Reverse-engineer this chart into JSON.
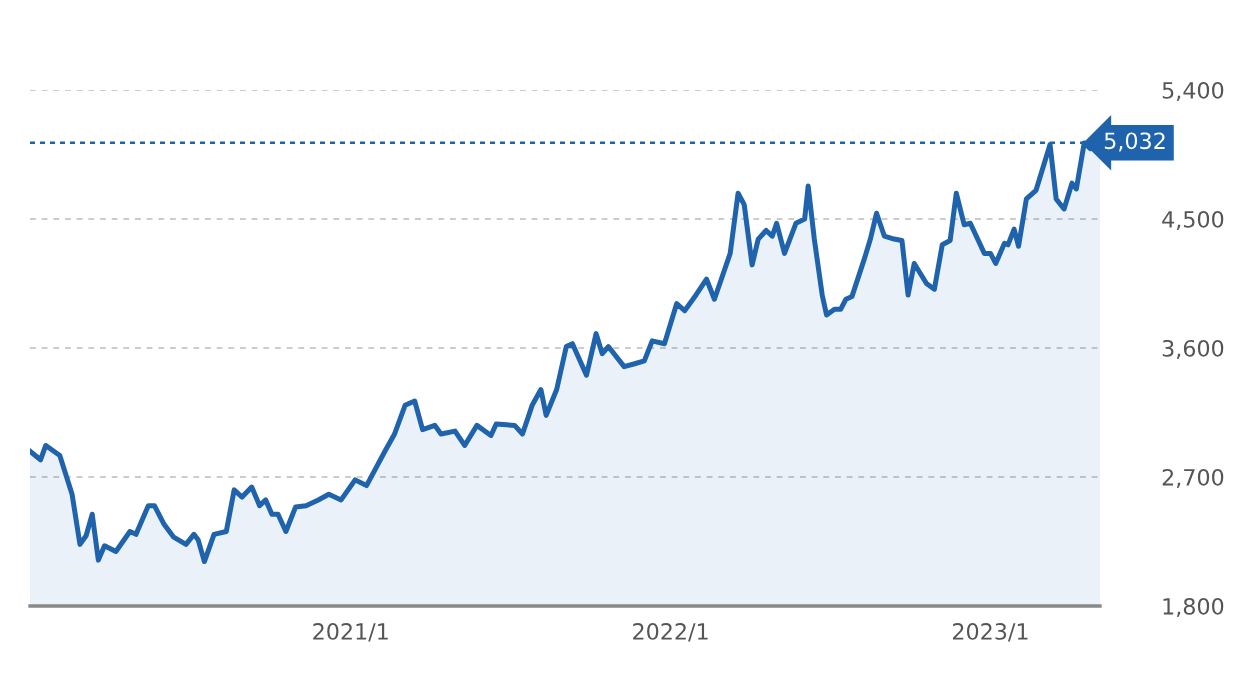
{
  "chart_data": {
    "type": "area",
    "x": [
      "2020-01-01",
      "2020-01-13",
      "2020-01-19",
      "2020-02-04",
      "2020-02-18",
      "2020-02-27",
      "2020-03-05",
      "2020-03-12",
      "2020-03-19",
      "2020-03-26",
      "2020-04-08",
      "2020-04-24",
      "2020-05-01",
      "2020-05-15",
      "2020-05-22",
      "2020-06-02",
      "2020-06-13",
      "2020-06-27",
      "2020-07-06",
      "2020-07-11",
      "2020-07-18",
      "2020-07-29",
      "2020-08-12",
      "2020-08-21",
      "2020-08-30",
      "2020-09-10",
      "2020-09-19",
      "2020-09-26",
      "2020-10-03",
      "2020-10-10",
      "2020-10-19",
      "2020-10-30",
      "2020-11-11",
      "2020-11-25",
      "2020-12-07",
      "2020-12-21",
      "2021-01-06",
      "2021-01-19",
      "2021-02-09",
      "2021-02-20",
      "2021-03-04",
      "2021-03-15",
      "2021-03-24",
      "2021-04-07",
      "2021-04-14",
      "2021-04-30",
      "2021-05-11",
      "2021-05-25",
      "2021-06-10",
      "2021-06-16",
      "2021-07-07",
      "2021-07-16",
      "2021-07-27",
      "2021-08-06",
      "2021-08-12",
      "2021-08-24",
      "2021-09-04",
      "2021-09-11",
      "2021-09-27",
      "2021-10-08",
      "2021-10-15",
      "2021-10-22",
      "2021-11-09",
      "2021-11-21",
      "2021-12-02",
      "2021-12-11",
      "2021-12-25",
      "2022-01-08",
      "2022-01-17",
      "2022-01-30",
      "2022-02-11",
      "2022-02-20",
      "2022-03-10",
      "2022-03-19",
      "2022-03-26",
      "2022-04-04",
      "2022-04-11",
      "2022-04-20",
      "2022-04-27",
      "2022-05-02",
      "2022-05-11",
      "2022-05-24",
      "2022-06-03",
      "2022-06-07",
      "2022-06-14",
      "2022-06-23",
      "2022-06-28",
      "2022-07-07",
      "2022-07-14",
      "2022-07-20",
      "2022-07-27",
      "2022-08-10",
      "2022-08-17",
      "2022-08-24",
      "2022-09-02",
      "2022-09-13",
      "2022-09-22",
      "2022-09-29",
      "2022-10-06",
      "2022-10-20",
      "2022-10-29",
      "2022-11-07",
      "2022-11-16",
      "2022-11-23",
      "2022-12-02",
      "2022-12-09",
      "2022-12-25",
      "2023-01-01",
      "2023-01-07",
      "2023-01-17",
      "2023-01-21",
      "2023-01-28",
      "2023-02-02",
      "2023-02-11",
      "2023-02-22",
      "2023-03-03",
      "2023-03-10",
      "2023-03-17",
      "2023-03-26",
      "2023-04-04",
      "2023-04-09",
      "2023-04-18",
      "2023-04-25",
      "2023-05-06"
    ],
    "series": [
      {
        "color": "#1f63ad",
        "values": [
          2880,
          2820,
          2920,
          2850,
          2580,
          2230,
          2290,
          2440,
          2120,
          2220,
          2180,
          2320,
          2300,
          2500,
          2500,
          2370,
          2280,
          2230,
          2300,
          2260,
          2110,
          2300,
          2320,
          2610,
          2560,
          2630,
          2500,
          2540,
          2440,
          2440,
          2320,
          2490,
          2500,
          2540,
          2580,
          2540,
          2680,
          2640,
          2880,
          3000,
          3200,
          3230,
          3030,
          3060,
          3000,
          3020,
          2920,
          3060,
          2990,
          3070,
          3060,
          3000,
          3200,
          3310,
          3130,
          3310,
          3610,
          3630,
          3410,
          3700,
          3560,
          3610,
          3470,
          3490,
          3510,
          3650,
          3630,
          3910,
          3860,
          3970,
          4080,
          3940,
          4260,
          4680,
          4600,
          4180,
          4360,
          4420,
          4380,
          4470,
          4260,
          4470,
          4500,
          4730,
          4360,
          3970,
          3830,
          3870,
          3870,
          3940,
          3960,
          4220,
          4360,
          4540,
          4380,
          4360,
          4350,
          3970,
          4190,
          4050,
          4010,
          4320,
          4350,
          4680,
          4460,
          4470,
          4260,
          4260,
          4190,
          4330,
          4320,
          4430,
          4310,
          4640,
          4700,
          4880,
          5020,
          4640,
          4570,
          4750,
          4710,
          5030,
          4990,
          5030
        ]
      }
    ],
    "xlim": [
      "2020-01-01",
      "2023-05-06"
    ],
    "xticks": [
      {
        "value": "2021-01-01",
        "label": "2021/1"
      },
      {
        "value": "2022-01-01",
        "label": "2022/1"
      },
      {
        "value": "2023-01-01",
        "label": "2023/1"
      }
    ],
    "ylim": [
      1800,
      5400
    ],
    "yticks": [
      {
        "value": 1800,
        "label": "1,800"
      },
      {
        "value": 2700,
        "label": "2,700"
      },
      {
        "value": 3600,
        "label": "3,600"
      },
      {
        "value": 4500,
        "label": "4,500"
      },
      {
        "value": 5400,
        "label": "5,400"
      }
    ],
    "ref_lines": [
      {
        "axis": "y",
        "value": 5032,
        "label": "5,032",
        "color": "#1f63ad",
        "line_style": "dotted"
      }
    ],
    "grid": "y",
    "legend": false
  }
}
